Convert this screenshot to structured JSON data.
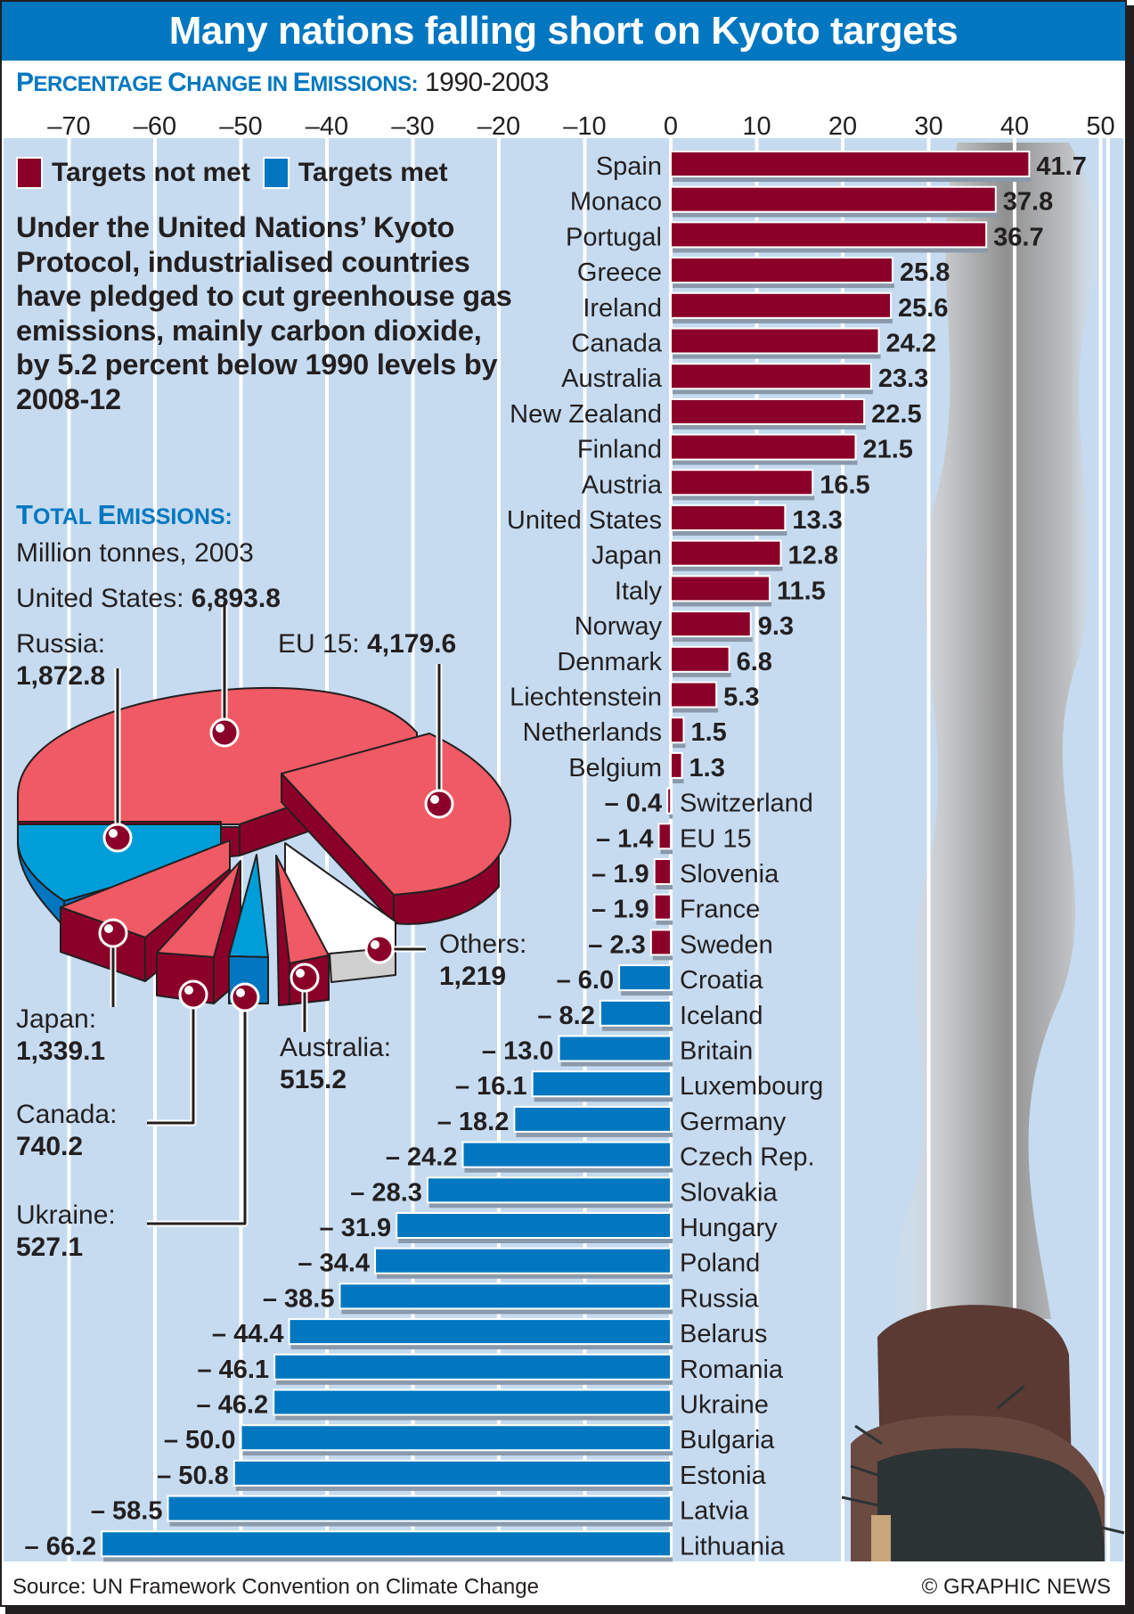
{
  "title": "Many nations falling short on Kyoto targets",
  "subtitle": {
    "lead_cap1": "P",
    "lead_rest1": "ERCENTAGE ",
    "lead_cap2": "C",
    "lead_rest2": "HANGE IN ",
    "lead_cap3": "E",
    "lead_rest3": "MISSIONS:",
    "period": "1990-2003"
  },
  "legend": [
    {
      "label": "Targets not met",
      "color": "#8b0029"
    },
    {
      "label": "Targets met",
      "color": "#0077c0"
    }
  ],
  "intro_text": "Under the United Nations’ Kyoto Protocol, industrialised countries have pledged to cut greenhouse gas emissions, mainly carbon dioxide, by 5.2 percent below 1990 levels by 2008-12",
  "total_emissions": {
    "title_cap1": "T",
    "title_rest1": "OTAL ",
    "title_cap2": "E",
    "title_rest2": "MISSIONS:",
    "subtitle": "Million tonnes, 2003"
  },
  "chart_data": [
    {
      "type": "bar",
      "orientation": "horizontal",
      "title": "Percentage Change in Emissions: 1990-2003",
      "xlim": [
        -70,
        50
      ],
      "xticks": [
        -70,
        -60,
        -50,
        -40,
        -30,
        -20,
        -10,
        0,
        10,
        20,
        30,
        40,
        50
      ],
      "xtick_labels": [
        "–70",
        "–60",
        "–50",
        "–40",
        "–30",
        "–20",
        "–10",
        "0",
        "10",
        "20",
        "30",
        "40",
        "50"
      ],
      "grid": true,
      "legend": "top-left",
      "categories": [
        "Spain",
        "Monaco",
        "Portugal",
        "Greece",
        "Ireland",
        "Canada",
        "Australia",
        "New Zealand",
        "Finland",
        "Austria",
        "United States",
        "Japan",
        "Italy",
        "Norway",
        "Denmark",
        "Liechtenstein",
        "Netherlands",
        "Belgium",
        "Switzerland",
        "EU 15",
        "Slovenia",
        "France",
        "Sweden",
        "Croatia",
        "Iceland",
        "Britain",
        "Luxembourg",
        "Germany",
        "Czech Rep.",
        "Slovakia",
        "Hungary",
        "Poland",
        "Russia",
        "Belarus",
        "Romania",
        "Ukraine",
        "Bulgaria",
        "Estonia",
        "Latvia",
        "Lithuania"
      ],
      "values": [
        41.7,
        37.8,
        36.7,
        25.8,
        25.6,
        24.2,
        23.3,
        22.5,
        21.5,
        16.5,
        13.3,
        12.8,
        11.5,
        9.3,
        6.8,
        5.3,
        1.5,
        1.3,
        -0.4,
        -1.4,
        -1.9,
        -1.9,
        -2.3,
        -6.0,
        -8.2,
        -13.0,
        -16.1,
        -18.2,
        -24.2,
        -28.3,
        -31.9,
        -34.4,
        -38.5,
        -44.4,
        -46.1,
        -46.2,
        -50.0,
        -50.8,
        -58.5,
        -66.2
      ],
      "value_labels": [
        "41.7",
        "37.8",
        "36.7",
        "25.8",
        "25.6",
        "24.2",
        "23.3",
        "22.5",
        "21.5",
        "16.5",
        "13.3",
        "12.8",
        "11.5",
        "9.3",
        "6.8",
        "5.3",
        "1.5",
        "1.3",
        "– 0.4",
        "– 1.4",
        "– 1.9",
        "– 1.9",
        "– 2.3",
        "– 6.0",
        "– 8.2",
        "– 13.0",
        "– 16.1",
        "– 18.2",
        "– 24.2",
        "– 28.3",
        "– 31.9",
        "– 34.4",
        "– 38.5",
        "– 44.4",
        "– 46.1",
        "– 46.2",
        "– 50.0",
        "– 50.8",
        "– 58.5",
        "– 66.2"
      ],
      "target_met": [
        false,
        false,
        false,
        false,
        false,
        false,
        false,
        false,
        false,
        false,
        false,
        false,
        false,
        false,
        false,
        false,
        false,
        false,
        false,
        false,
        false,
        false,
        false,
        true,
        true,
        true,
        true,
        true,
        true,
        true,
        true,
        true,
        true,
        true,
        true,
        true,
        true,
        true,
        true,
        true
      ]
    },
    {
      "type": "pie",
      "title": "Total Emissions: Million tonnes, 2003",
      "slices": [
        {
          "label": "United States",
          "value": 6893.8,
          "display": "6,893.8",
          "target_met": false
        },
        {
          "label": "EU 15",
          "value": 4179.6,
          "display": "4,179.6",
          "target_met": false
        },
        {
          "label": "Others",
          "value": 1219,
          "display": "1,219",
          "target_met": null
        },
        {
          "label": "Australia",
          "value": 515.2,
          "display": "515.2",
          "target_met": false
        },
        {
          "label": "Ukraine",
          "value": 527.1,
          "display": "527.1",
          "target_met": true
        },
        {
          "label": "Canada",
          "value": 740.2,
          "display": "740.2",
          "target_met": false
        },
        {
          "label": "Japan",
          "value": 1339.1,
          "display": "1,339.1",
          "target_met": false
        },
        {
          "label": "Russia",
          "value": 1872.8,
          "display": "1,872.8",
          "target_met": true
        }
      ]
    }
  ],
  "pie_labels": {
    "us": {
      "name": "United States:",
      "value": "6,893.8"
    },
    "russia": {
      "name": "Russia:",
      "value": "1,872.8"
    },
    "eu": {
      "name": "EU 15:",
      "value": "4,179.6"
    },
    "others": {
      "name": "Others:",
      "value": "1,219"
    },
    "japan": {
      "name": "Japan:",
      "value": "1,339.1"
    },
    "australia": {
      "name": "Australia:",
      "value": "515.2"
    },
    "canada": {
      "name": "Canada:",
      "value": "740.2"
    },
    "ukraine": {
      "name": "Ukraine:",
      "value": "527.1"
    }
  },
  "colors": {
    "not_met": "#8b0029",
    "met": "#0077c0",
    "pie_red_top": "#f05a64",
    "pie_blue_top": "#009ed8",
    "grid_bg": "#c6dbf0",
    "title_bg": "#0077c0"
  },
  "footer": {
    "source": "Source: UN Framework Convention on Climate Change",
    "copyright": "© GRAPHIC NEWS"
  }
}
